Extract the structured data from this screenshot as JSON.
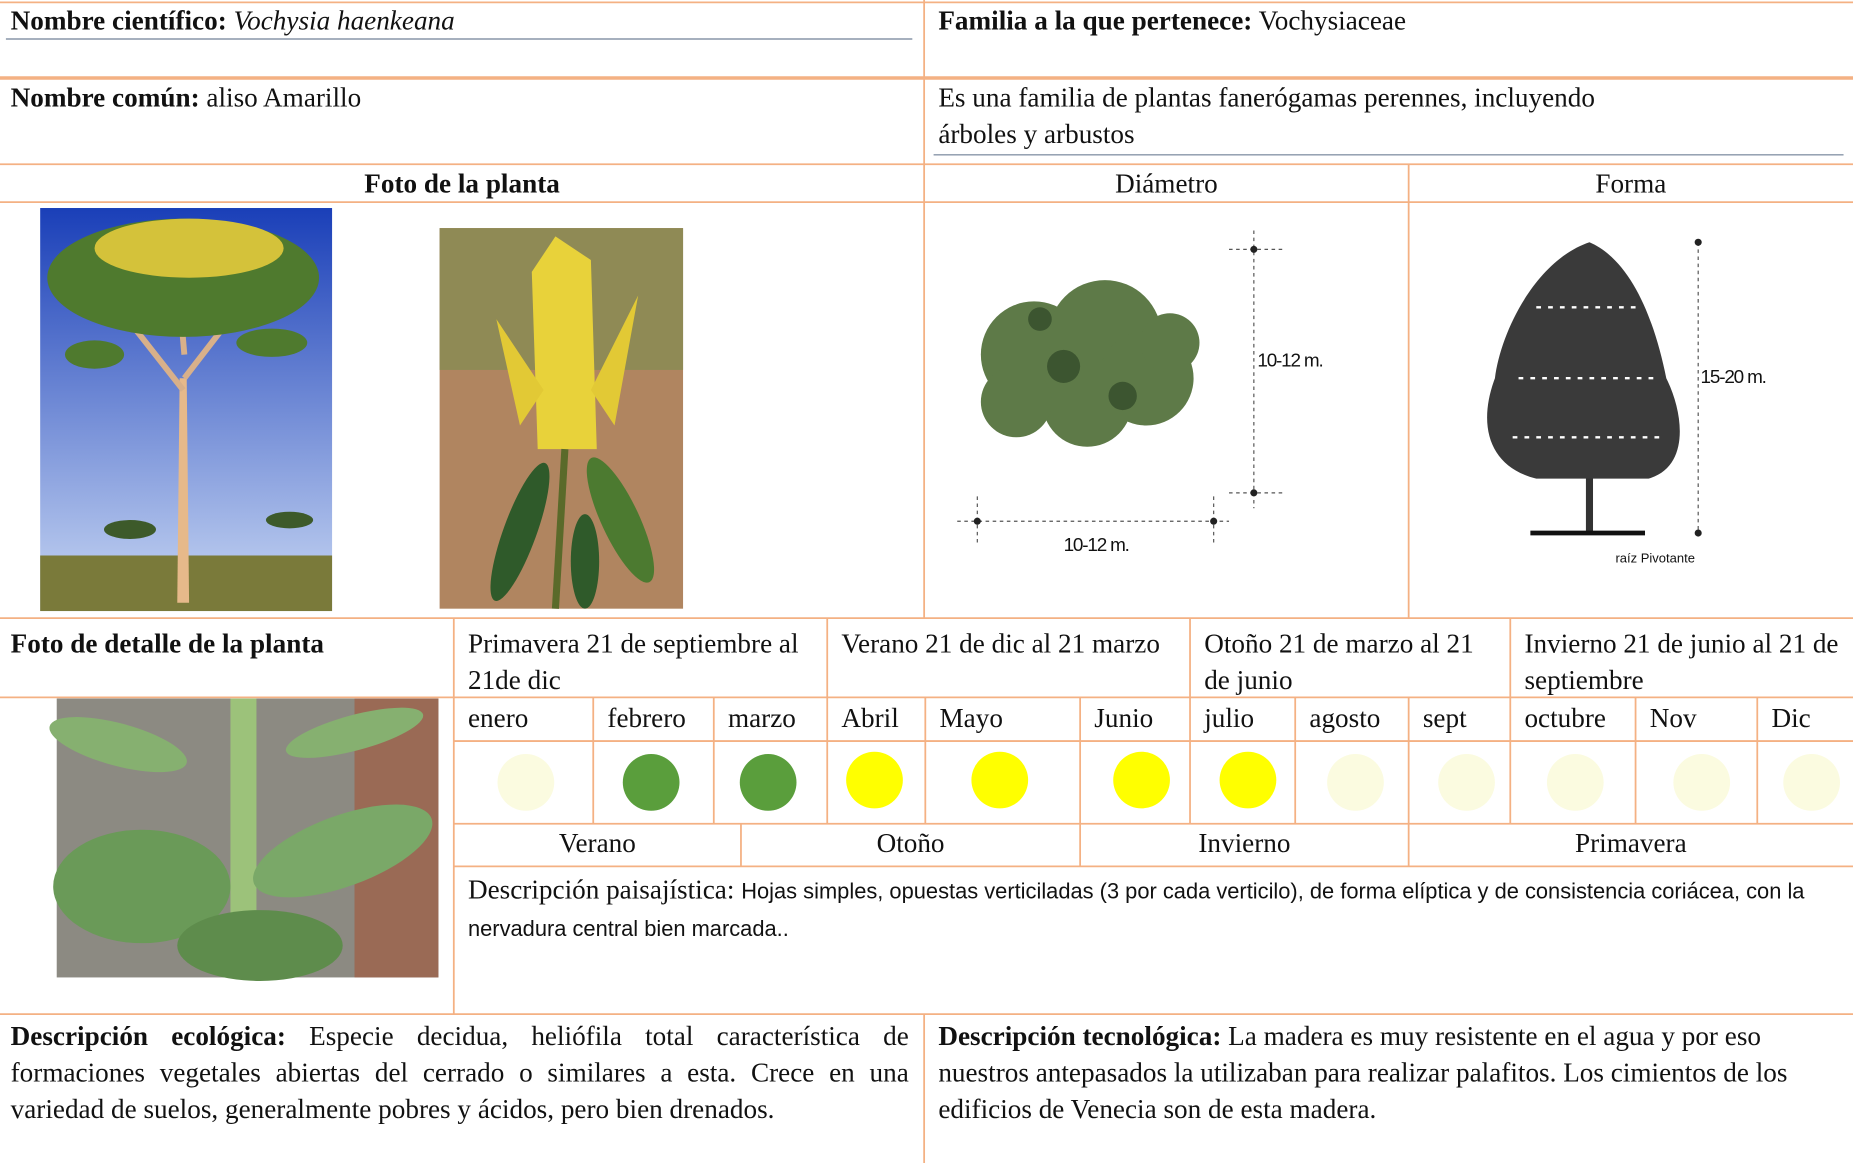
{
  "header": {
    "scientific_name": {
      "label": "Nombre científico:",
      "value": "Vochysia haenkeana"
    },
    "family": {
      "label": "Familia a la que pertenece:",
      "value": "Vochysiaceae"
    },
    "common_name": {
      "label": "Nombre común:",
      "value": "aliso Amarillo"
    },
    "family_description": "Es una familia de plantas fanerógamas perennes, incluyendo árboles y arbustos"
  },
  "photo": {
    "title": "Foto de la planta"
  },
  "diameter": {
    "title": "Diámetro",
    "height_label": "10-12 m.",
    "width_label": "10-12 m."
  },
  "form": {
    "title": "Forma",
    "height_label": "15-20 m.",
    "root_label": "raíz Pivotante"
  },
  "detail": {
    "title": "Foto de detalle de la planta"
  },
  "seasons": [
    "Primavera 21 de septiembre al 21de dic",
    "Verano 21 de dic al 21 marzo",
    "Otoño 21 de marzo al 21 de junio",
    "Invierno 21 de junio al 21 de septiembre"
  ],
  "months": [
    {
      "name": "enero",
      "color": "#fbfbe0"
    },
    {
      "name": "febrero",
      "color": "#5a9e3c"
    },
    {
      "name": "marzo",
      "color": "#5a9e3c"
    },
    {
      "name": "Abril",
      "color": "#ffff00"
    },
    {
      "name": "Mayo",
      "color": "#ffff00"
    },
    {
      "name": "Junio",
      "color": "#ffff00"
    },
    {
      "name": "julio",
      "color": "#ffff00"
    },
    {
      "name": "agosto",
      "color": "#fbfbe0"
    },
    {
      "name": "sept",
      "color": "#fbfbe0"
    },
    {
      "name": "octubre",
      "color": "#fbfbe0"
    },
    {
      "name": "Nov",
      "color": "#fbfbe0"
    },
    {
      "name": "Dic",
      "color": "#fbfbe0"
    }
  ],
  "season_bands": [
    "Verano",
    "Otoño",
    "Invierno",
    "Primavera"
  ],
  "landscape": {
    "label": "Descripción paisajística:",
    "text": "Hojas simples, opuestas verticiladas (3 por cada verticilo), de forma elíptica y de consistencia coriácea, con la nervadura central bien marcada.."
  },
  "ecological": {
    "label": "Descripción ecológica:",
    "text": "Especie decidua, heliófila total característica de formaciones vegetales abiertas del cerrado o similares a esta. Crece en una variedad de suelos, generalmente pobres y ácidos, pero bien drenados."
  },
  "technological": {
    "label": "Descripción tecnológica:",
    "text": "La madera es muy resistente en el agua y por eso nuestros antepasados la utilizaban para realizar palafitos. Los cimientos de los edificios de Venecia son de esta madera."
  }
}
